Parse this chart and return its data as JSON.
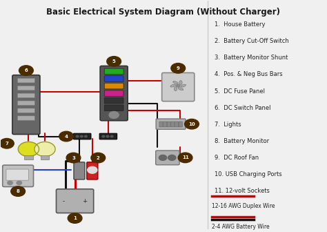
{
  "title": "Basic Electrical System Diagram (Without Charger)",
  "bg_color": "#f0f0f0",
  "title_color": "#1a1a1a",
  "legend_items": [
    "1.  House Battery",
    "2.  Battery Cut-Off Switch",
    "3.  Battery Monitor Shunt",
    "4.  Pos. & Neg Bus Bars",
    "5.  DC Fuse Panel",
    "6.  DC Switch Panel",
    "7.  Lights",
    "8.  Battery Monitor",
    "9.  DC Roof Fan",
    "10. USB Charging Ports",
    "11. 12-volt Sockets"
  ],
  "number_bg": "#4a2c00",
  "number_color": "#ffffff",
  "red": "#cc0000",
  "black": "#111111",
  "blue": "#2244cc"
}
